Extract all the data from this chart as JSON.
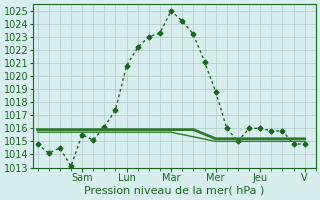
{
  "background_color": "#d8eeee",
  "plot_bg_color": "#d8eeee",
  "grid_color": "#b0caca",
  "line_color_main": "#1a6620",
  "line_color_flat1": "#2d7a2d",
  "line_color_flat2": "#2d7a2d",
  "ylim": [
    1013,
    1025.5
  ],
  "yticks": [
    1013,
    1014,
    1015,
    1016,
    1017,
    1018,
    1019,
    1020,
    1021,
    1022,
    1023,
    1024,
    1025
  ],
  "xlabel": "Pression niveau de la mer( hPa )",
  "day_labels": [
    "Sam",
    "Lun",
    "Mar",
    "Mer",
    "Jeu",
    "V"
  ],
  "day_positions": [
    2,
    4,
    6,
    8,
    10,
    12
  ],
  "series1_x": [
    0,
    0.5,
    1,
    1.5,
    2,
    2.5,
    3,
    3.5,
    4,
    4.5,
    5,
    5.5,
    6,
    6.5,
    7,
    7.5,
    8,
    8.5,
    9,
    9.5,
    10,
    10.5,
    11,
    11.5,
    12
  ],
  "series1_y": [
    1014.8,
    1014.1,
    1014.5,
    1013.1,
    1015.5,
    1015.1,
    1016.1,
    1017.4,
    1020.8,
    1022.2,
    1023.0,
    1023.3,
    1025.0,
    1024.2,
    1023.2,
    1021.1,
    1018.8,
    1016.0,
    1015.0,
    1016.0,
    1016.0,
    1015.8,
    1015.8,
    1014.8,
    1014.8
  ],
  "series2_x": [
    0,
    1,
    2,
    3,
    4,
    5,
    6,
    7,
    8,
    9,
    10,
    11,
    12
  ],
  "series2_y": [
    1015.9,
    1015.9,
    1015.9,
    1015.9,
    1015.9,
    1015.9,
    1015.9,
    1015.9,
    1015.2,
    1015.2,
    1015.2,
    1015.2,
    1015.2
  ],
  "series3_x": [
    0,
    6,
    8,
    12
  ],
  "series3_y": [
    1015.7,
    1015.7,
    1015.0,
    1015.0
  ],
  "xlim": [
    -0.2,
    12.5
  ],
  "title_fontsize": 8,
  "tick_fontsize": 7,
  "label_fontsize": 8
}
